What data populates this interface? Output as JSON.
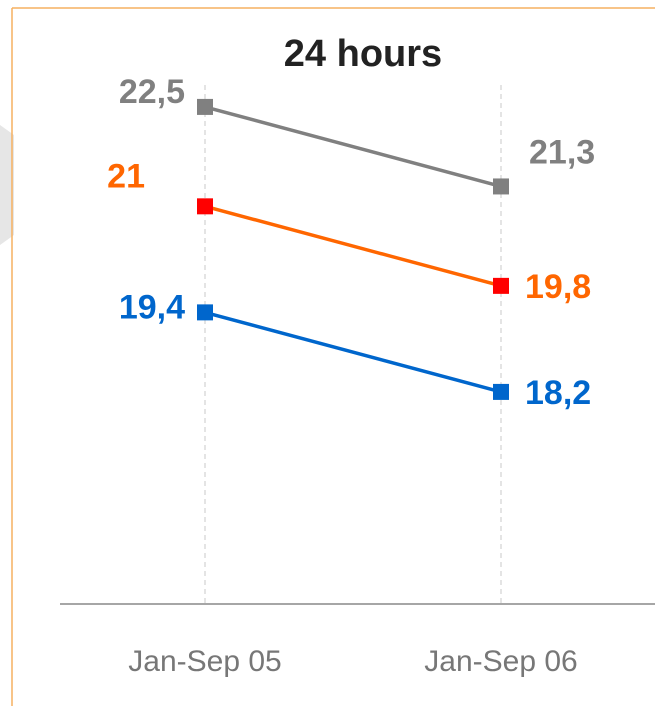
{
  "chart_data": {
    "type": "line",
    "title": "24 hours",
    "categories": [
      "Jan-Sep 05",
      "Jan-Sep 06"
    ],
    "series": [
      {
        "name": null,
        "color": "#808080",
        "marker_color": "#808080",
        "values": [
          22.5,
          21.3
        ],
        "value_labels": [
          "22,5",
          "21,3"
        ]
      },
      {
        "name": null,
        "color": "#ff6600",
        "marker_color": "#ff0000",
        "values": [
          21,
          19.8
        ],
        "value_labels": [
          "21",
          "19,8"
        ]
      },
      {
        "name": null,
        "color": "#0066cc",
        "marker_color": "#0066cc",
        "values": [
          19.4,
          18.2
        ],
        "value_labels": [
          "19,4",
          "18,2"
        ]
      }
    ],
    "ylim": [
      15,
      24
    ]
  }
}
